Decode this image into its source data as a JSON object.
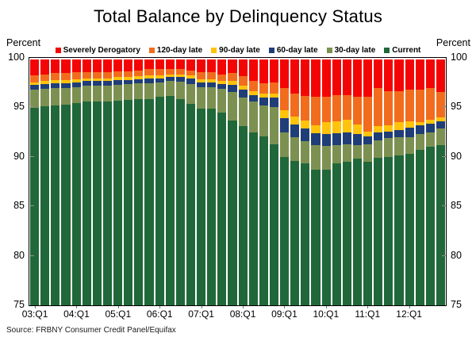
{
  "source": "Source: FRBNY Consumer Credit Panel/Equifax",
  "axes": {
    "left_unit": "Percent",
    "right_unit": "Percent",
    "y_ticks": [
      100,
      95,
      90,
      85,
      80,
      75
    ],
    "x_tick_labels": [
      "03:Q1",
      "04:Q1",
      "05:Q1",
      "06:Q1",
      "07:Q1",
      "08:Q1",
      "09:Q1",
      "10:Q1",
      "11:Q1",
      "12:Q1"
    ]
  },
  "chart_data": {
    "type": "bar",
    "stacked": true,
    "title": "Total Balance by Delinquency Status",
    "xlabel": "",
    "ylabel": "Percent",
    "ylim": [
      75,
      100
    ],
    "grid": false,
    "legend_position": "top-center",
    "unit": "percent of total balance",
    "categories": [
      "03:Q1",
      "03:Q2",
      "03:Q3",
      "03:Q4",
      "04:Q1",
      "04:Q2",
      "04:Q3",
      "04:Q4",
      "05:Q1",
      "05:Q2",
      "05:Q3",
      "05:Q4",
      "06:Q1",
      "06:Q2",
      "06:Q3",
      "06:Q4",
      "07:Q1",
      "07:Q2",
      "07:Q3",
      "07:Q4",
      "08:Q1",
      "08:Q2",
      "08:Q3",
      "08:Q4",
      "09:Q1",
      "09:Q2",
      "09:Q3",
      "09:Q4",
      "10:Q1",
      "10:Q2",
      "10:Q3",
      "10:Q4",
      "11:Q1",
      "11:Q2",
      "11:Q3",
      "11:Q4",
      "12:Q1",
      "12:Q2",
      "12:Q3",
      "12:Q4"
    ],
    "stack_order": "first series is top of stack; last series (Current) is baseline drawn from 75%",
    "series": [
      {
        "name": "Severely Derogatory",
        "color": "#F40505",
        "values": [
          1.6,
          1.5,
          1.4,
          1.4,
          1.3,
          1.3,
          1.3,
          1.3,
          1.2,
          1.2,
          1.1,
          1.0,
          1.0,
          1.0,
          1.0,
          1.1,
          1.3,
          1.3,
          1.5,
          1.4,
          1.7,
          2.2,
          2.4,
          2.3,
          2.9,
          3.5,
          3.7,
          3.8,
          3.8,
          3.6,
          3.6,
          3.8,
          3.8,
          2.9,
          3.2,
          3.2,
          3.1,
          3.1,
          2.9,
          3.3
        ]
      },
      {
        "name": "120-day late",
        "color": "#F26C1E",
        "values": [
          0.7,
          0.7,
          0.7,
          0.7,
          0.7,
          0.6,
          0.6,
          0.6,
          0.6,
          0.6,
          0.6,
          0.6,
          0.6,
          0.5,
          0.5,
          0.5,
          0.7,
          0.7,
          0.7,
          0.8,
          1.0,
          1.0,
          1.1,
          1.2,
          2.3,
          2.3,
          2.5,
          2.9,
          2.6,
          2.7,
          2.5,
          2.8,
          3.5,
          3.9,
          3.5,
          3.2,
          3.2,
          3.3,
          3.2,
          2.6
        ]
      },
      {
        "name": "90-day late",
        "color": "#FFC30B",
        "values": [
          0.3,
          0.3,
          0.3,
          0.3,
          0.3,
          0.3,
          0.3,
          0.3,
          0.3,
          0.3,
          0.3,
          0.3,
          0.3,
          0.3,
          0.3,
          0.3,
          0.3,
          0.3,
          0.3,
          0.4,
          0.4,
          0.4,
          0.4,
          0.4,
          0.8,
          0.8,
          0.8,
          0.8,
          1.2,
          1.2,
          1.3,
          1.0,
          0.5,
          0.6,
          0.6,
          0.8,
          0.6,
          0.3,
          0.4,
          0.4
        ]
      },
      {
        "name": "60-day late",
        "color": "#1F3E77",
        "values": [
          0.5,
          0.5,
          0.5,
          0.5,
          0.5,
          0.5,
          0.5,
          0.5,
          0.5,
          0.4,
          0.4,
          0.5,
          0.4,
          0.4,
          0.5,
          0.6,
          0.5,
          0.5,
          0.5,
          0.7,
          0.8,
          0.7,
          0.8,
          0.9,
          1.4,
          1.3,
          1.3,
          1.2,
          1.2,
          1.2,
          1.2,
          1.1,
          0.8,
          0.8,
          0.7,
          0.7,
          1.0,
          0.9,
          0.9,
          0.7
        ]
      },
      {
        "name": "30-day late",
        "color": "#7C9151",
        "values": [
          1.8,
          1.8,
          1.8,
          1.7,
          1.6,
          1.6,
          1.6,
          1.6,
          1.6,
          1.6,
          1.6,
          1.6,
          1.5,
          1.5,
          1.7,
          2.0,
          2.2,
          2.2,
          2.4,
          2.9,
          2.9,
          3.1,
          3.1,
          3.8,
          2.5,
          2.4,
          2.3,
          2.5,
          2.4,
          1.9,
          1.8,
          1.4,
          1.8,
          1.8,
          1.9,
          1.9,
          1.7,
          1.6,
          1.5,
          1.7
        ]
      },
      {
        "name": "Current",
        "color": "#206839",
        "values": [
          95.1,
          95.2,
          95.3,
          95.4,
          95.6,
          95.7,
          95.7,
          95.7,
          95.8,
          95.9,
          96.0,
          96.0,
          96.2,
          96.3,
          96.0,
          95.5,
          95.0,
          95.0,
          94.6,
          93.8,
          93.2,
          92.6,
          92.2,
          91.4,
          90.1,
          89.7,
          89.4,
          88.8,
          88.8,
          89.4,
          89.6,
          89.9,
          89.6,
          90.0,
          90.1,
          90.2,
          90.4,
          90.8,
          91.1,
          91.3
        ]
      }
    ]
  }
}
